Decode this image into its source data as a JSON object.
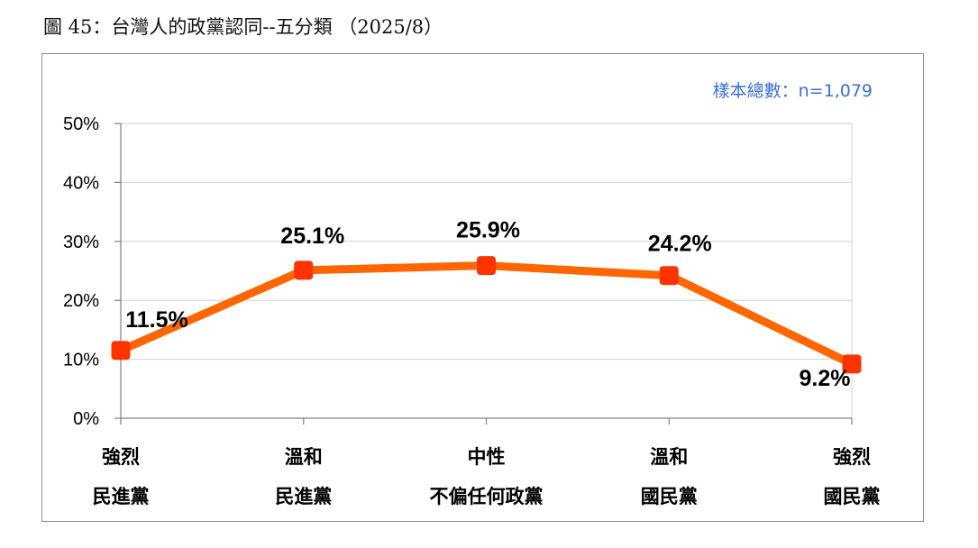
{
  "figure_title": "圖 45：台灣人的政黨認同--五分類 （2025/8）",
  "sample_note": "樣本總數：n=1,079",
  "colors": {
    "line": "#ff6600",
    "marker": "#ff3300",
    "grid": "#d0d0d0",
    "axis": "#808080",
    "note": "#3b6fd8"
  },
  "chart_data": {
    "type": "line",
    "categories": [
      [
        "強烈",
        "民進黨"
      ],
      [
        "溫和",
        "民進黨"
      ],
      [
        "中性",
        "不偏任何政黨"
      ],
      [
        "溫和",
        "國民黨"
      ],
      [
        "強烈",
        "國民黨"
      ]
    ],
    "values": [
      11.5,
      25.1,
      25.9,
      24.2,
      9.2
    ],
    "value_labels": [
      "11.5%",
      "25.1%",
      "25.9%",
      "24.2%",
      "9.2%"
    ],
    "yticks": [
      "0%",
      "10%",
      "20%",
      "30%",
      "40%",
      "50%"
    ],
    "ylim": [
      0,
      50
    ],
    "grid": true,
    "title": "",
    "xlabel": "",
    "ylabel": ""
  }
}
